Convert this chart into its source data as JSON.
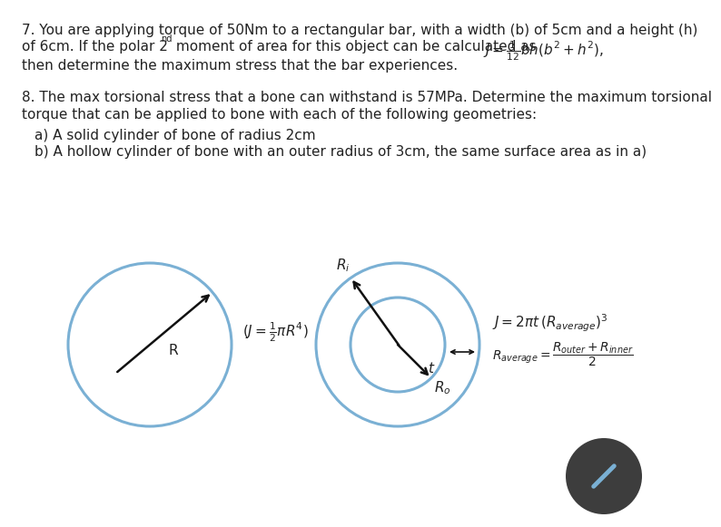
{
  "bg_color": "#ffffff",
  "text_color": "#222222",
  "circle_color": "#7ab0d4",
  "circle_lw": 2.2,
  "arrow_color": "#111111",
  "q7_line1": "7. You are applying torque of 50Nm to a rectangular bar, with a width (b) of 5cm and a height (h)",
  "q7_line2_pre": "of 6cm. If the polar 2",
  "q7_line2_sup": "nd",
  "q7_line2_mid": " moment of area for this object can be calculated as ",
  "q7_formula": "$J = \\frac{1}{12}bh(b^2 + h^2)$,",
  "q7_line3": "then determine the maximum stress that the bar experiences.",
  "q8_line1": "8. The max torsional stress that a bone can withstand is 57MPa. Determine the maximum torsional",
  "q8_line2": "torque that can be applied to bone with each of the following geometries:",
  "qa_line": "a) A solid cylinder of bone of radius 2cm",
  "qb_line": "b) A hollow cylinder of bone with an outer radius of 3cm, the same surface area as in a)",
  "solid_J_formula": "$(J = \\frac{1}{2}\\pi R^4)$",
  "solid_R_label": "R",
  "hollow_J_formula": "$J = 2\\pi t\\,(R_{average})^3$",
  "hollow_Ravg_formula": "$R_{average} = \\dfrac{R_{outer} + R_{inner}}{2}$",
  "hollow_Ri_label": "$R_i$",
  "hollow_Ro_label": "$R_o$",
  "hollow_t_label": "$t$",
  "button_color": "#3d3d3d",
  "pencil_color": "#7ab0d4"
}
